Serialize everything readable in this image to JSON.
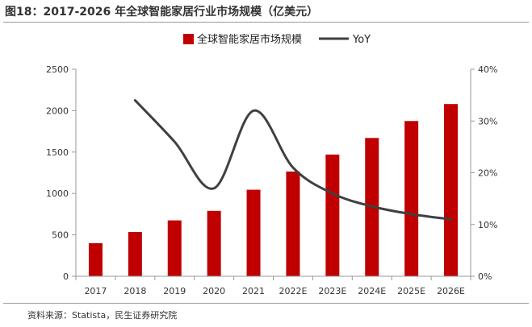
{
  "header": {
    "title": "图18：2017-2026 年全球智能家居行业市场规模（亿美元）"
  },
  "footer": {
    "source": "资料来源：Statista，民生证券研究院"
  },
  "colors": {
    "bar": "#C00000",
    "line": "#404040",
    "axis": "#999999"
  },
  "chart_data": {
    "type": "bar",
    "title": "2017-2026 年全球智能家居行业市场规模（亿美元）",
    "categories": [
      "2017",
      "2018",
      "2019",
      "2020",
      "2021",
      "2022E",
      "2023E",
      "2024E",
      "2025E",
      "2026E"
    ],
    "series": [
      {
        "name": "全球智能家居市场规模",
        "type": "bar",
        "axis": "left",
        "values": [
          400,
          535,
          675,
          790,
          1045,
          1265,
          1470,
          1670,
          1875,
          2080
        ]
      },
      {
        "name": "YoY",
        "type": "line",
        "axis": "right",
        "values": [
          null,
          34,
          26,
          17,
          32,
          21,
          16,
          13.5,
          12,
          11
        ]
      }
    ],
    "y_left": {
      "min": 0,
      "max": 2500,
      "ticks": [
        "0",
        "500",
        "1000",
        "1500",
        "2000",
        "2500"
      ]
    },
    "y_right": {
      "min": 0,
      "max": 40,
      "ticks": [
        "0%",
        "10%",
        "20%",
        "30%",
        "40%"
      ]
    },
    "legend": {
      "position": "top",
      "labels": [
        "全球智能家居市场规模",
        "YoY"
      ]
    }
  }
}
